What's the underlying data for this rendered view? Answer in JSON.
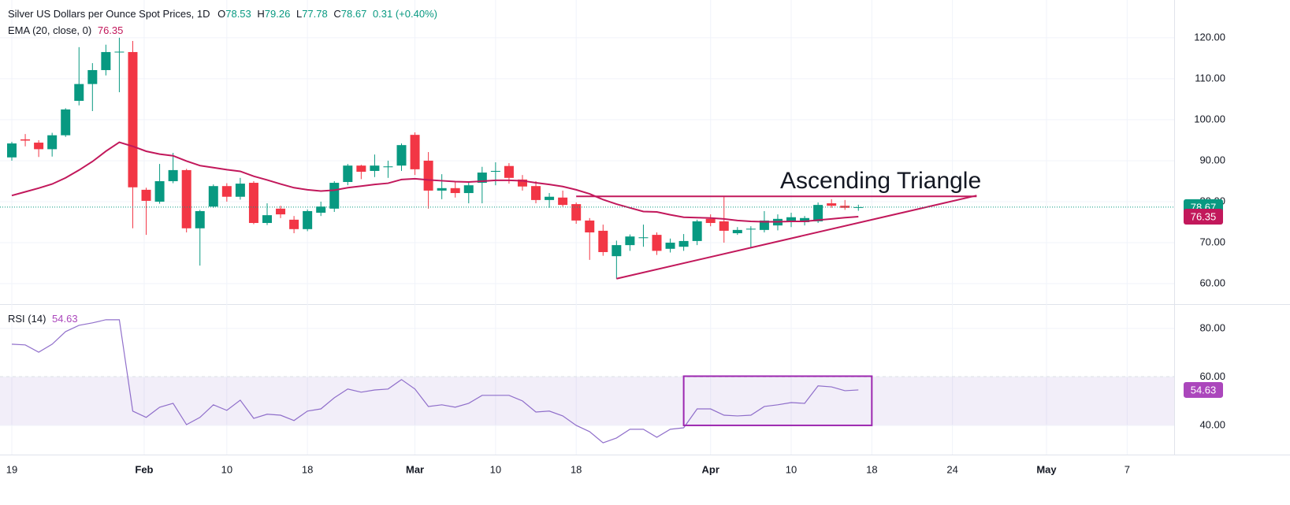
{
  "chart_data": [
    {
      "type": "candlestick",
      "title": "Silver US Dollars per Ounce Spot Prices, 1D",
      "ohlc_labels": [
        "O",
        "H",
        "L",
        "C"
      ],
      "change_label": "0.31 (+0.40%)",
      "x": [
        0,
        1,
        2,
        3,
        4,
        5,
        6,
        7,
        8,
        9,
        10,
        11,
        12,
        13,
        14,
        15,
        16,
        17,
        18,
        19,
        20,
        21,
        22,
        23,
        24,
        25,
        26,
        27,
        28,
        29,
        30,
        31,
        32,
        33,
        34,
        35,
        36,
        37,
        38,
        39,
        40,
        41,
        42,
        43,
        44,
        45,
        46,
        47,
        48,
        49,
        50,
        51,
        52,
        53,
        54,
        55,
        56,
        57,
        58,
        59,
        60,
        61,
        62,
        63
      ],
      "open": [
        90.8,
        95.2,
        94.4,
        92.8,
        96.2,
        104.6,
        108.7,
        112.1,
        116.5,
        116.5,
        82.9,
        80,
        85,
        87.7,
        73.5,
        78.8,
        83.8,
        81.2,
        84.6,
        74.8,
        78.3,
        75.6,
        73.3,
        77.3,
        78.3,
        84.8,
        88.8,
        87.5,
        88.4,
        88.8,
        96.3,
        90,
        82.7,
        83.3,
        82.1,
        84.6,
        87.3,
        88.7,
        85.4,
        83.8,
        80.4,
        81,
        79.4,
        75.4,
        72.9,
        66.7,
        69.4,
        71.1,
        71.9,
        68.5,
        69,
        70.4,
        75.8,
        75.2,
        72.3,
        73.2,
        73.1,
        74.2,
        75,
        75,
        75.2,
        79.6,
        79,
        78.53
      ],
      "high": [
        94.6,
        96.5,
        95,
        96.8,
        102.8,
        117.7,
        113.8,
        118.3,
        120,
        119.2,
        83.4,
        89.2,
        91.9,
        88,
        78,
        84.2,
        84.5,
        85.8,
        85,
        79.6,
        79,
        76.5,
        78.1,
        80,
        85,
        89.2,
        89,
        91.5,
        90,
        94.2,
        96.9,
        92.1,
        86.7,
        85,
        85,
        88.5,
        89.6,
        89.4,
        86.5,
        85,
        82.1,
        82.7,
        79.8,
        76,
        74.4,
        70.5,
        72,
        74.4,
        72.5,
        71,
        72.1,
        75.6,
        76.9,
        81.2,
        73.8,
        74,
        77.7,
        76.9,
        77.3,
        76.5,
        79.8,
        80.6,
        80.4,
        79.26
      ],
      "low": [
        90,
        93.5,
        90.9,
        91,
        95.8,
        103.5,
        102.1,
        110.8,
        106.7,
        73.5,
        71.9,
        79.5,
        84.5,
        72.5,
        64.4,
        78.5,
        80,
        80.5,
        74.5,
        74.3,
        76,
        72.3,
        72.8,
        76.5,
        77.5,
        84,
        85.5,
        86,
        85.8,
        87.5,
        86.5,
        78.3,
        80.6,
        81,
        79.6,
        79.6,
        84,
        84.4,
        82.7,
        79.6,
        78.5,
        78.8,
        74.6,
        65.8,
        66.8,
        61.2,
        68,
        69,
        67,
        67.6,
        68,
        69.4,
        74,
        70,
        71.9,
        68.7,
        72.5,
        73,
        73.8,
        74.2,
        74.8,
        78.5,
        78,
        77.78
      ],
      "close": [
        94.2,
        94.9,
        92.8,
        96.2,
        102.5,
        108.7,
        112.1,
        116.5,
        116.6,
        83.5,
        80.2,
        85,
        87.7,
        73.5,
        77.7,
        83.8,
        81.2,
        84.4,
        74.8,
        76.7,
        76.9,
        73.3,
        77.7,
        78.8,
        84.6,
        88.8,
        87.3,
        88.8,
        88.6,
        93.8,
        87.9,
        82.7,
        83.3,
        82.1,
        84,
        87.1,
        87.5,
        85.8,
        83.7,
        80.4,
        81.2,
        79.2,
        75.4,
        72.5,
        67.7,
        69.4,
        71.5,
        71.3,
        68,
        70,
        70.4,
        75.2,
        74.8,
        72.9,
        73.1,
        73.4,
        75.4,
        75.8,
        76.2,
        76,
        79.2,
        79,
        78.5,
        78.67
      ],
      "up_color": "#089981",
      "down_color": "#f23645",
      "overlays": [
        {
          "type": "line",
          "name": "EMA (20, close, 0)",
          "color": "#c2185b",
          "values": [
            81.5,
            82.4,
            83.3,
            84.3,
            85.8,
            87.7,
            89.8,
            92.3,
            94.5,
            93.5,
            92.3,
            91.6,
            91.2,
            89.9,
            88.8,
            88.3,
            87.8,
            87.4,
            86.2,
            85.3,
            84.3,
            83.4,
            82.9,
            82.6,
            82.8,
            83.4,
            83.8,
            84.2,
            84.5,
            85.4,
            85.6,
            85.3,
            85.1,
            84.9,
            84.8,
            85,
            85.2,
            85.2,
            85.1,
            84.6,
            84.2,
            83.7,
            82.9,
            81.9,
            80.5,
            79.4,
            78.5,
            77.6,
            77.5,
            76.8,
            76.2,
            76.1,
            76,
            75.8,
            75.4,
            75.2,
            75.1,
            75.1,
            75.2,
            75.2,
            75.5,
            75.8,
            76.1,
            76.35
          ]
        }
      ],
      "annotations": [
        {
          "type": "trendline",
          "color": "#c2185b",
          "x": [
            42,
            71.8
          ],
          "y": [
            81.3,
            81.3
          ]
        },
        {
          "type": "trendline",
          "color": "#c2185b",
          "x": [
            45,
            71.8
          ],
          "y": [
            61.2,
            81.5
          ]
        },
        {
          "type": "text",
          "text": "Ascending Triangle",
          "color": "#2962ff"
        }
      ],
      "xlim": [
        -0.88,
        86.5
      ],
      "xticks": [
        {
          "value": 0,
          "label": "19"
        },
        {
          "value": 9.85,
          "label": "Feb"
        },
        {
          "value": 16,
          "label": "10"
        },
        {
          "value": 22,
          "label": "18"
        },
        {
          "value": 30,
          "label": "Mar"
        },
        {
          "value": 36,
          "label": "10"
        },
        {
          "value": 42,
          "label": "18"
        },
        {
          "value": 52,
          "label": "Apr"
        },
        {
          "value": 58,
          "label": "10"
        },
        {
          "value": 64,
          "label": "18"
        },
        {
          "value": 70,
          "label": "24"
        },
        {
          "value": 77,
          "label": "May"
        },
        {
          "value": 83,
          "label": "7"
        }
      ],
      "ylim": [
        55.2,
        129.2
      ],
      "yticks": [
        {
          "value": 60,
          "label": "60.00"
        },
        {
          "value": 70,
          "label": "70.00"
        },
        {
          "value": 80,
          "label": "80.00"
        },
        {
          "value": 90,
          "label": "90.00"
        },
        {
          "value": 100,
          "label": "100.00"
        },
        {
          "value": 110,
          "label": "110.00"
        },
        {
          "value": 120,
          "label": "120.00"
        }
      ],
      "grid": true
    },
    {
      "type": "line",
      "name": "RSI (14)",
      "color": "#7e57c2",
      "values": [
        73.5,
        73.2,
        70.2,
        73.5,
        78.7,
        81.3,
        82.3,
        83.6,
        83.6,
        45.9,
        43.3,
        47.5,
        49.1,
        40.3,
        43.3,
        48.5,
        46.2,
        50.4,
        42.9,
        44.6,
        44.2,
        42,
        45.9,
        46.8,
        51.4,
        55,
        53.7,
        54.6,
        55,
        58.9,
        55,
        47.8,
        48.5,
        47.5,
        49.1,
        52.4,
        52.4,
        52.4,
        50.1,
        45.5,
        45.9,
        43.9,
        40,
        37.4,
        32.8,
        34.8,
        38.4,
        38.4,
        35.1,
        38.4,
        39,
        46.8,
        46.8,
        44.2,
        43.9,
        44.2,
        47.8,
        48.5,
        49.4,
        49.1,
        56.3,
        55.9,
        54.3,
        54.63
      ],
      "band": [
        40,
        60
      ],
      "annotations": [
        {
          "type": "rectangle",
          "color": "#9c27b0",
          "x": [
            50,
            64
          ],
          "y": [
            40,
            60.3
          ]
        }
      ],
      "xlim": [
        -0.88,
        86.5
      ],
      "ylim": [
        28.6,
        89.4
      ],
      "yticks": [
        {
          "value": 40,
          "label": "40.00"
        },
        {
          "value": 60,
          "label": "60.00"
        },
        {
          "value": 80,
          "label": "80.00"
        }
      ],
      "grid": true
    }
  ]
}
